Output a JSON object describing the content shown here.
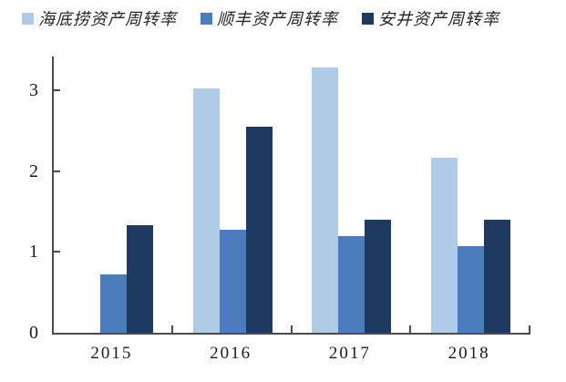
{
  "legend": [
    {
      "label": "海底捞资产周转率",
      "color": "#b0cbe6"
    },
    {
      "label": "顺丰资产周转率",
      "color": "#4b7dbd"
    },
    {
      "label": "安井资产周转率",
      "color": "#1f3a60"
    }
  ],
  "chart_data": {
    "type": "bar",
    "title": "",
    "xlabel": "",
    "ylabel": "",
    "categories": [
      "2015",
      "2016",
      "2017",
      "2018"
    ],
    "series": [
      {
        "name": "海底捞资产周转率",
        "key": "haidilao",
        "color": "#b0cbe6",
        "values": [
          null,
          3.03,
          3.28,
          2.17
        ]
      },
      {
        "name": "顺丰资产周转率",
        "key": "shunfeng",
        "color": "#4b7dbd",
        "values": [
          0.72,
          1.28,
          1.2,
          1.07
        ]
      },
      {
        "name": "安井资产周转率",
        "key": "anjing",
        "color": "#1f3a60",
        "values": [
          1.33,
          2.55,
          1.4,
          1.4
        ]
      }
    ],
    "ylim": [
      0,
      3.42
    ],
    "yticks": [
      0,
      1,
      2,
      3
    ],
    "grid": false,
    "legend_position": "top"
  },
  "axis": {
    "line_color": "#4c4c4c",
    "text_color": "#1a1a1a"
  }
}
